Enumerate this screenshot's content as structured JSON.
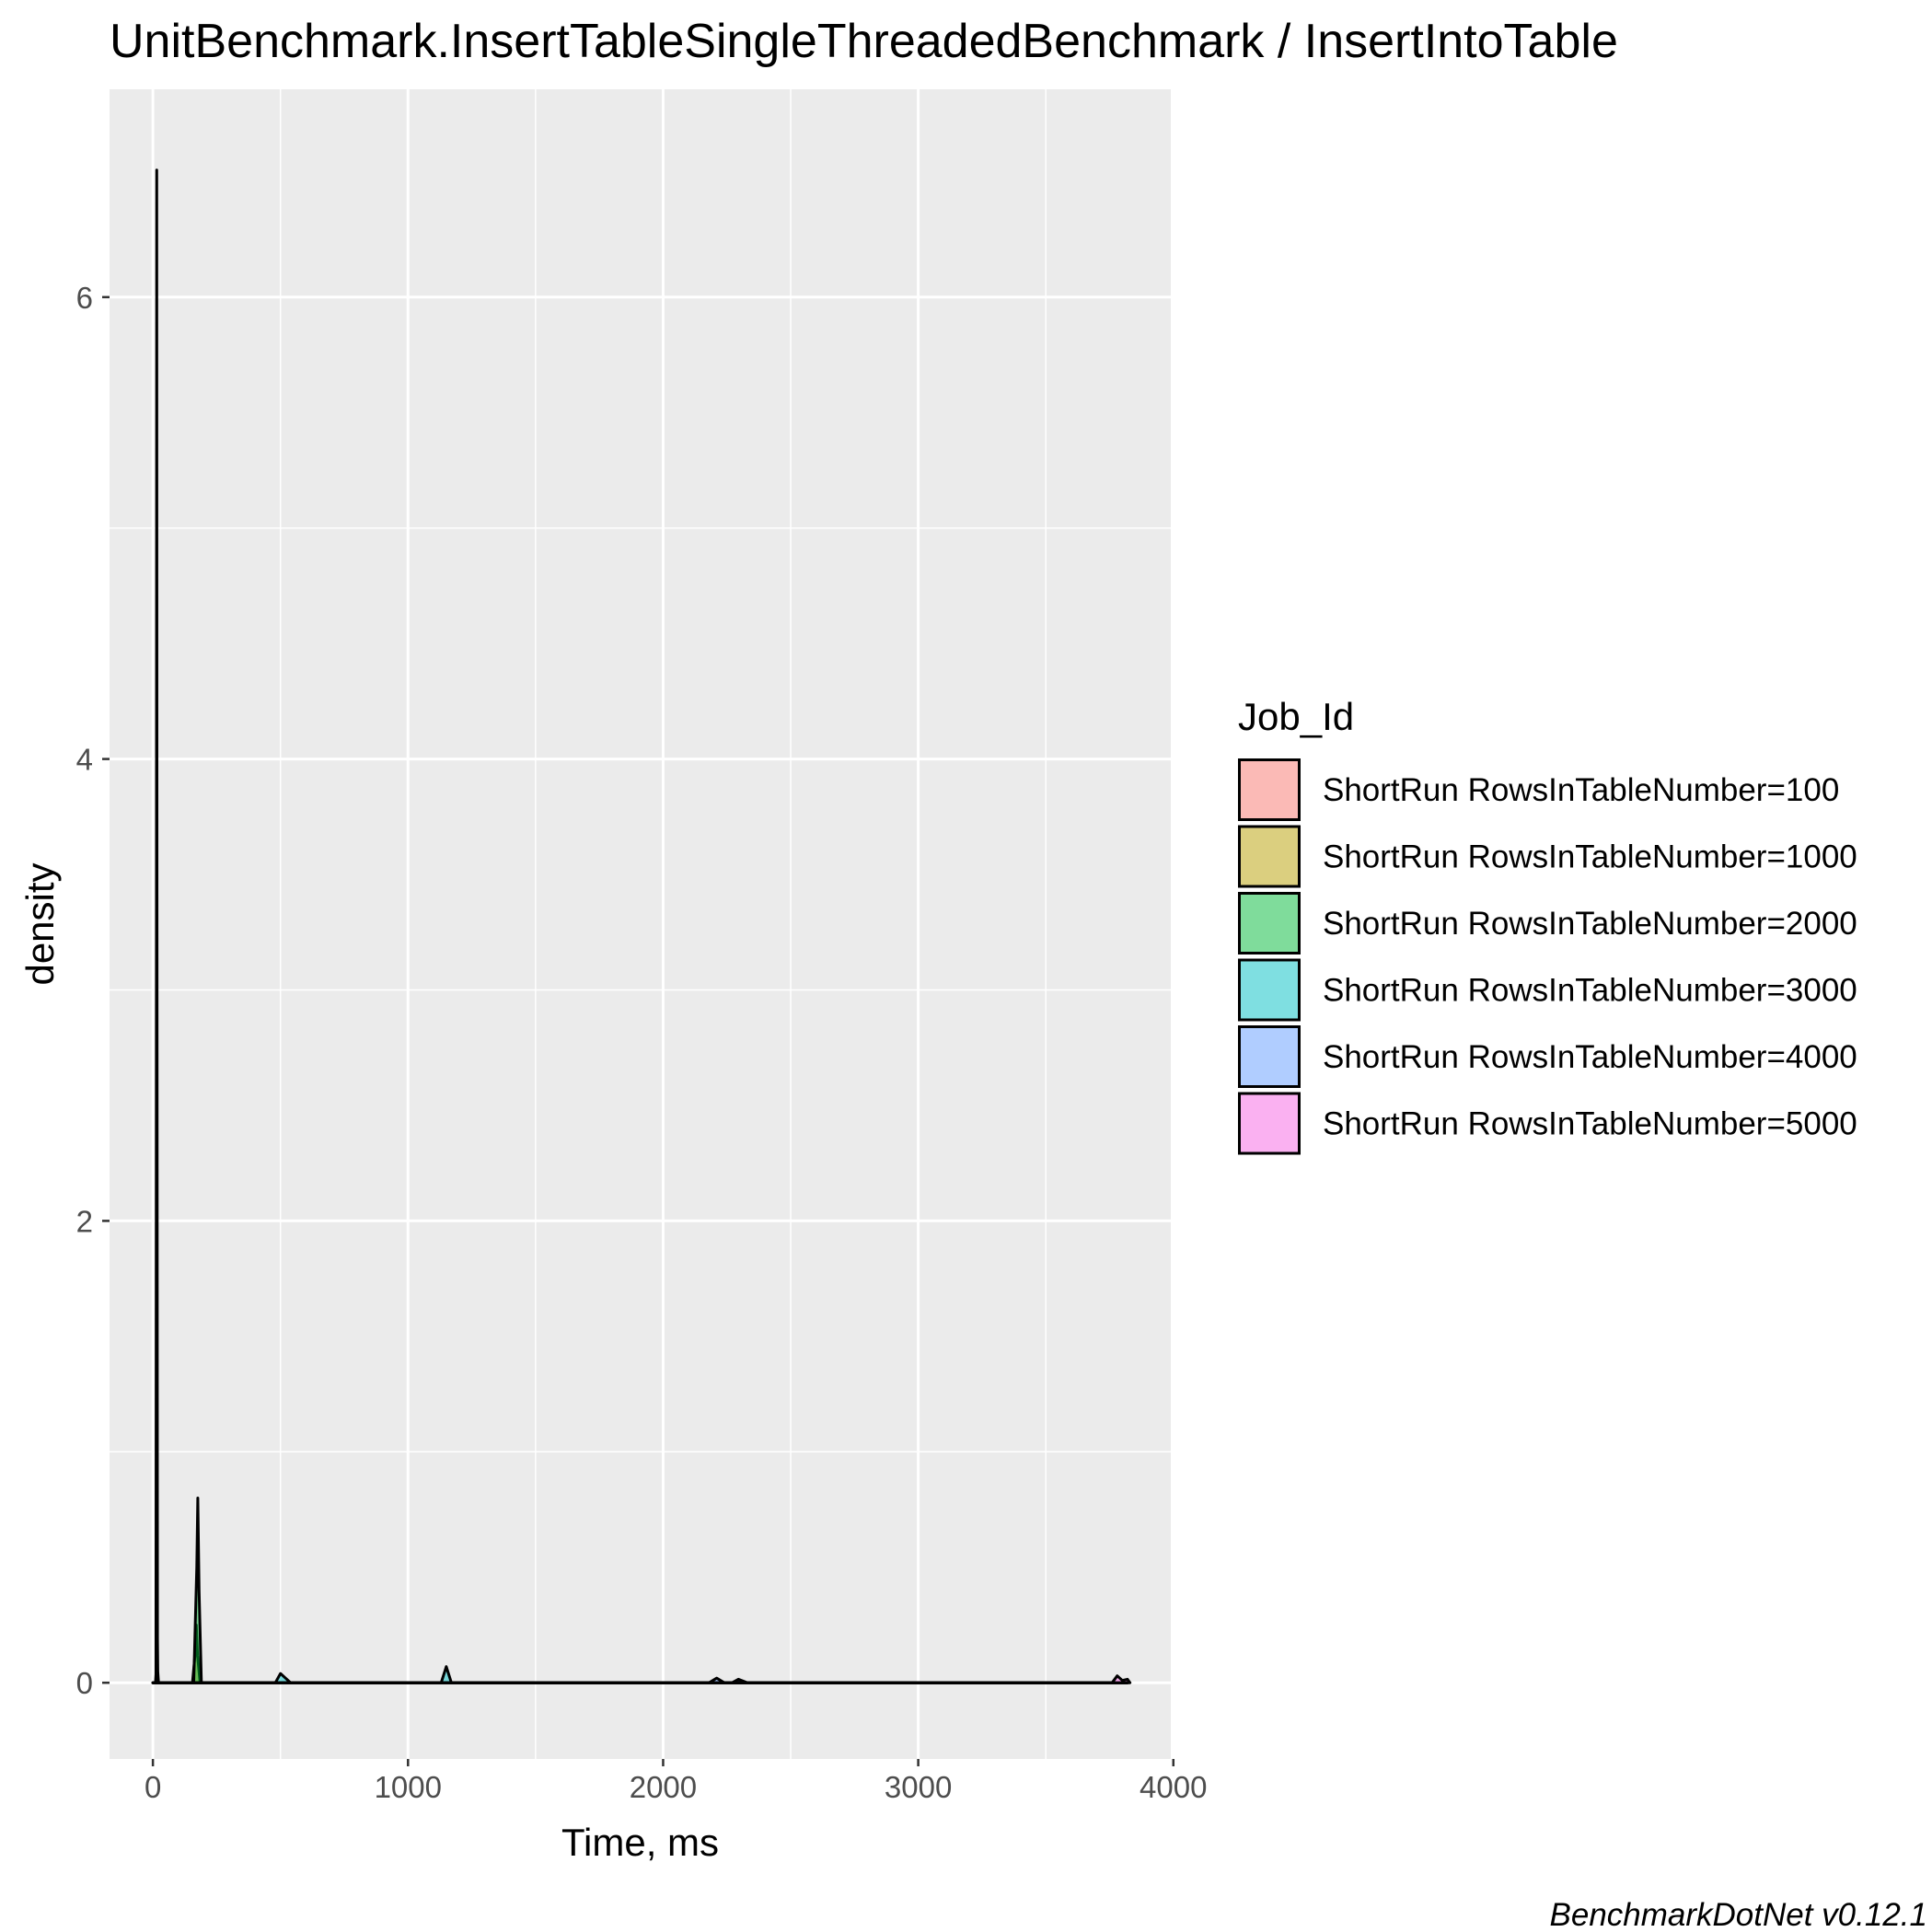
{
  "chart_data": {
    "type": "area",
    "title": "UnitBenchmark.InsertTableSingleThreadedBenchmark / InsertIntoTable",
    "xlabel": "Time, ms",
    "ylabel": "density",
    "caption": "BenchmarkDotNet v0.12.1",
    "xlim": [
      -170,
      3990
    ],
    "ylim": [
      -0.33,
      6.9
    ],
    "x_ticks": [
      0,
      1000,
      2000,
      3000,
      4000
    ],
    "x_tick_labels": [
      "0",
      "1000",
      "2000",
      "3000",
      "4000"
    ],
    "y_ticks": [
      0,
      2,
      4,
      6
    ],
    "y_tick_labels": [
      "0",
      "2",
      "4",
      "6"
    ],
    "grid": true,
    "legend_position": "right",
    "legend_title": "Job_Id",
    "series": [
      {
        "name": "ShortRun RowsInTableNumber=100",
        "color": "#F8766D",
        "points": [
          [
            0,
            0
          ],
          [
            10,
            0
          ],
          [
            13,
            0.05
          ],
          [
            16,
            0.35
          ],
          [
            19,
            0.05
          ],
          [
            22,
            0
          ],
          [
            3820,
            0
          ]
        ]
      },
      {
        "name": "ShortRun RowsInTableNumber=1000",
        "color": "#B79F00",
        "points": [
          [
            0,
            0
          ],
          [
            155,
            0
          ],
          [
            165,
            0.12
          ],
          [
            170,
            0.25
          ],
          [
            175,
            0.12
          ],
          [
            185,
            0
          ],
          [
            3820,
            0
          ]
        ]
      },
      {
        "name": "ShortRun RowsInTableNumber=2000",
        "color": "#00BA38",
        "points": [
          [
            0,
            0
          ],
          [
            160,
            0
          ],
          [
            172,
            0.5
          ],
          [
            176,
            0.8
          ],
          [
            181,
            0.4
          ],
          [
            190,
            0
          ],
          [
            3820,
            0
          ]
        ]
      },
      {
        "name": "ShortRun RowsInTableNumber=3000",
        "color": "#00BFC4",
        "points": [
          [
            0,
            0
          ],
          [
            480,
            0
          ],
          [
            500,
            0.04
          ],
          [
            520,
            0.02
          ],
          [
            540,
            0
          ],
          [
            1130,
            0
          ],
          [
            1150,
            0.07
          ],
          [
            1170,
            0
          ],
          [
            3820,
            0
          ]
        ]
      },
      {
        "name": "ShortRun RowsInTableNumber=4000",
        "color": "#619CFF",
        "points": [
          [
            0,
            0
          ],
          [
            2180,
            0
          ],
          [
            2210,
            0.02
          ],
          [
            2240,
            0
          ],
          [
            2270,
            0
          ],
          [
            2295,
            0.015
          ],
          [
            2330,
            0
          ],
          [
            3820,
            0
          ]
        ]
      },
      {
        "name": "ShortRun RowsInTableNumber=5000",
        "color": "#F564E3",
        "points": [
          [
            0,
            0
          ],
          [
            12,
            0
          ],
          [
            14,
            3.4
          ],
          [
            15,
            6.55
          ],
          [
            16,
            3.4
          ],
          [
            18,
            0
          ],
          [
            3760,
            0
          ],
          [
            3780,
            0.03
          ],
          [
            3800,
            0.01
          ],
          [
            3820,
            0.015
          ],
          [
            3830,
            0
          ]
        ]
      }
    ]
  }
}
